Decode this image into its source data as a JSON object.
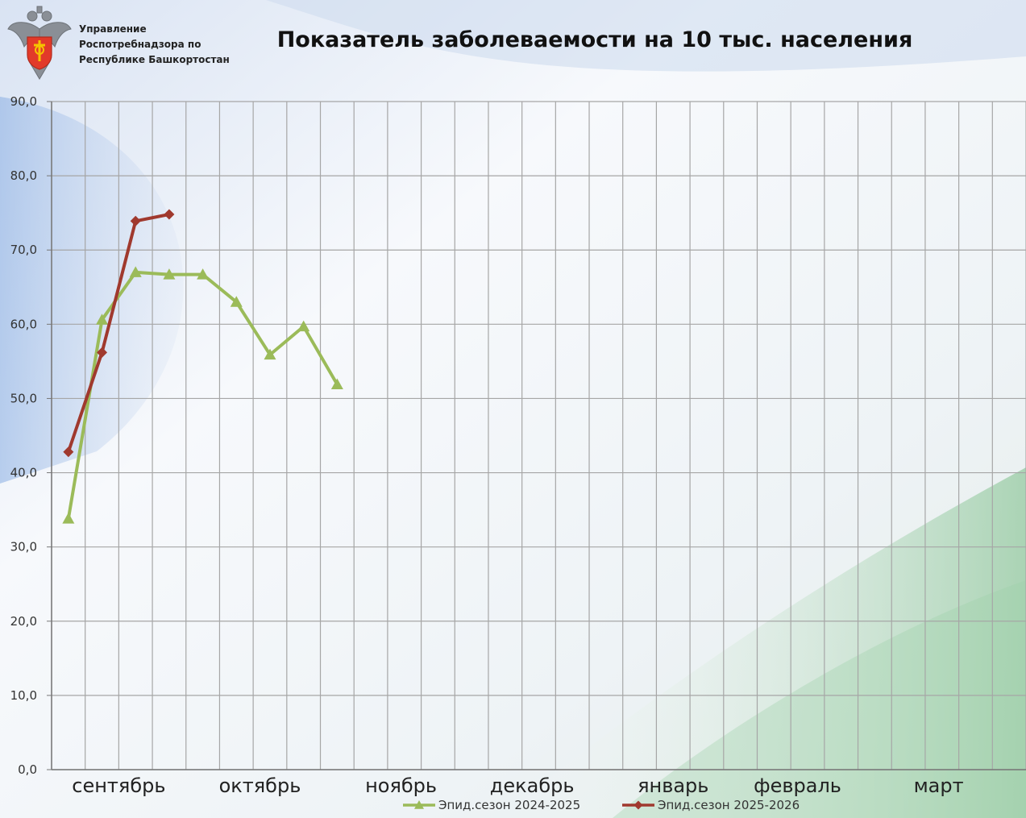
{
  "header": {
    "org_lines": [
      "Управление",
      "Роспотребнадзора по",
      "Республике Башкортостан"
    ]
  },
  "colors": {
    "series_2024": "#9bbb59",
    "series_2025": "#a0392e",
    "grid": "#a6a6a6"
  },
  "chart_data": {
    "type": "line",
    "title": "Показатель заболеваемости на 10 тыс. населения",
    "ylim": [
      0,
      90
    ],
    "y_ticks": [
      "0,0",
      "10,0",
      "20,0",
      "30,0",
      "40,0",
      "50,0",
      "60,0",
      "70,0",
      "80,0",
      "90,0"
    ],
    "x_count": 29,
    "month_labels": [
      {
        "label": "сентябрь",
        "center": 2.0
      },
      {
        "label": "октябрь",
        "center": 6.2
      },
      {
        "label": "ноябрь",
        "center": 10.4
      },
      {
        "label": "декабрь",
        "center": 14.3
      },
      {
        "label": "январь",
        "center": 18.5
      },
      {
        "label": "февраль",
        "center": 22.2
      },
      {
        "label": "март",
        "center": 26.4
      }
    ],
    "grid": true,
    "legend_position": "bottom",
    "series": [
      {
        "name": "Эпид.сезон 2024-2025",
        "marker": "triangle",
        "values": [
          33.8,
          60.6,
          67.0,
          66.7,
          66.7,
          63.0,
          55.9,
          59.7,
          51.9
        ]
      },
      {
        "name": "Эпид.сезон 2025-2026",
        "marker": "diamond",
        "values": [
          42.8,
          56.2,
          73.9,
          74.8
        ]
      }
    ]
  }
}
